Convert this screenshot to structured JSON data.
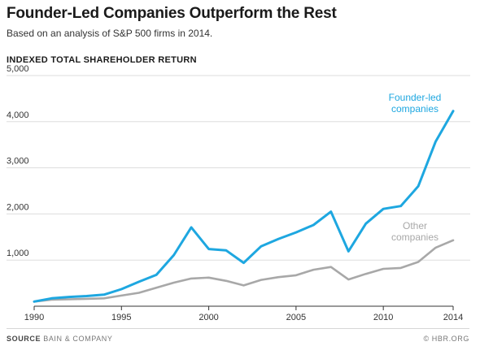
{
  "header": {
    "title": "Founder-Led Companies Outperform the Rest",
    "subtitle": "Based on an analysis of S&P 500 firms in 2014."
  },
  "footer": {
    "source_label": "SOURCE",
    "source_text": "BAIN & COMPANY",
    "copyright": "© HBR.ORG"
  },
  "chart_data": {
    "type": "line",
    "title": "Founder-Led Companies Outperform the Rest",
    "subtitle": "Based on an analysis of S&P 500 firms in 2014.",
    "ylabel": "INDEXED TOTAL SHAREHOLDER RETURN",
    "xlabel": "",
    "x": [
      1990,
      1991,
      1992,
      1993,
      1994,
      1995,
      1996,
      1997,
      1998,
      1999,
      2000,
      2001,
      2002,
      2003,
      2004,
      2005,
      2006,
      2007,
      2008,
      2009,
      2010,
      2011,
      2012,
      2013,
      2014
    ],
    "xlim": [
      1990,
      2014
    ],
    "ylim": [
      0,
      5000
    ],
    "x_ticks": [
      1990,
      1995,
      2000,
      2005,
      2010,
      2014
    ],
    "x_tick_labels": [
      "1990",
      "1995",
      "2000",
      "2005",
      "2010",
      "2014"
    ],
    "y_ticks": [
      1000,
      2000,
      3000,
      4000,
      5000
    ],
    "y_tick_labels": [
      "1,000",
      "2,000",
      "3,000",
      "4,000",
      "5,000"
    ],
    "grid": true,
    "series": [
      {
        "name": "Founder-led companies",
        "label_lines": [
          "Founder-led",
          "companies"
        ],
        "color": "#1ea7e0",
        "values": [
          100,
          170,
          200,
          220,
          250,
          370,
          530,
          680,
          1110,
          1710,
          1240,
          1210,
          940,
          1300,
          1460,
          1600,
          1760,
          2050,
          1190,
          1790,
          2110,
          2170,
          2600,
          3570,
          4230
        ]
      },
      {
        "name": "Other companies",
        "label_lines": [
          "Other",
          "companies"
        ],
        "color": "#a8a8a8",
        "values": [
          100,
          140,
          150,
          160,
          170,
          230,
          290,
          400,
          510,
          600,
          620,
          550,
          450,
          570,
          630,
          670,
          790,
          850,
          580,
          700,
          810,
          830,
          960,
          1270,
          1430
        ]
      }
    ]
  }
}
